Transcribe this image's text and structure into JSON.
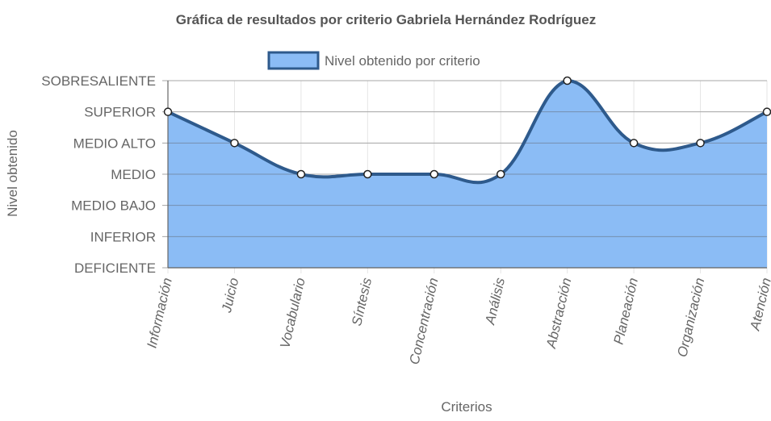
{
  "chart_data": {
    "type": "area",
    "title": "Gráfica de resultados por criterio Gabriela Hernández Rodríguez",
    "xlabel": "Criterios",
    "ylabel": "Nivel obtenido",
    "categories": [
      "Información",
      "Juicio",
      "Vocabulario",
      "Síntesis",
      "Concentración",
      "Análisis",
      "Abstracción",
      "Planeación",
      "Organización",
      "Atención"
    ],
    "y_levels": [
      "DEFICIENTE",
      "INFERIOR",
      "MEDIO BAJO",
      "MEDIO",
      "MEDIO ALTO",
      "SUPERIOR",
      "SOBRESALIENTE"
    ],
    "ylim": [
      0,
      6
    ],
    "series": [
      {
        "name": "Nivel obtenido por criterio",
        "values": [
          5,
          4,
          3,
          3,
          3,
          3,
          6,
          4,
          4,
          5
        ],
        "value_labels": [
          "SUPERIOR",
          "MEDIO ALTO",
          "MEDIO",
          "MEDIO",
          "MEDIO",
          "MEDIO",
          "SOBRESALIENTE",
          "MEDIO ALTO",
          "MEDIO ALTO",
          "SUPERIOR"
        ]
      }
    ],
    "legend_position": "top",
    "grid": true,
    "line_smoothing": "curved",
    "colors": {
      "fill": "#8bbcf5",
      "line": "#2e5a8c",
      "point_fill": "#ffffff",
      "point_stroke": "#222222",
      "grid": "#e5e5e5",
      "axis": "#666666",
      "legend_fill": "#8bbcf5",
      "legend_stroke": "#2e5a8c"
    }
  }
}
